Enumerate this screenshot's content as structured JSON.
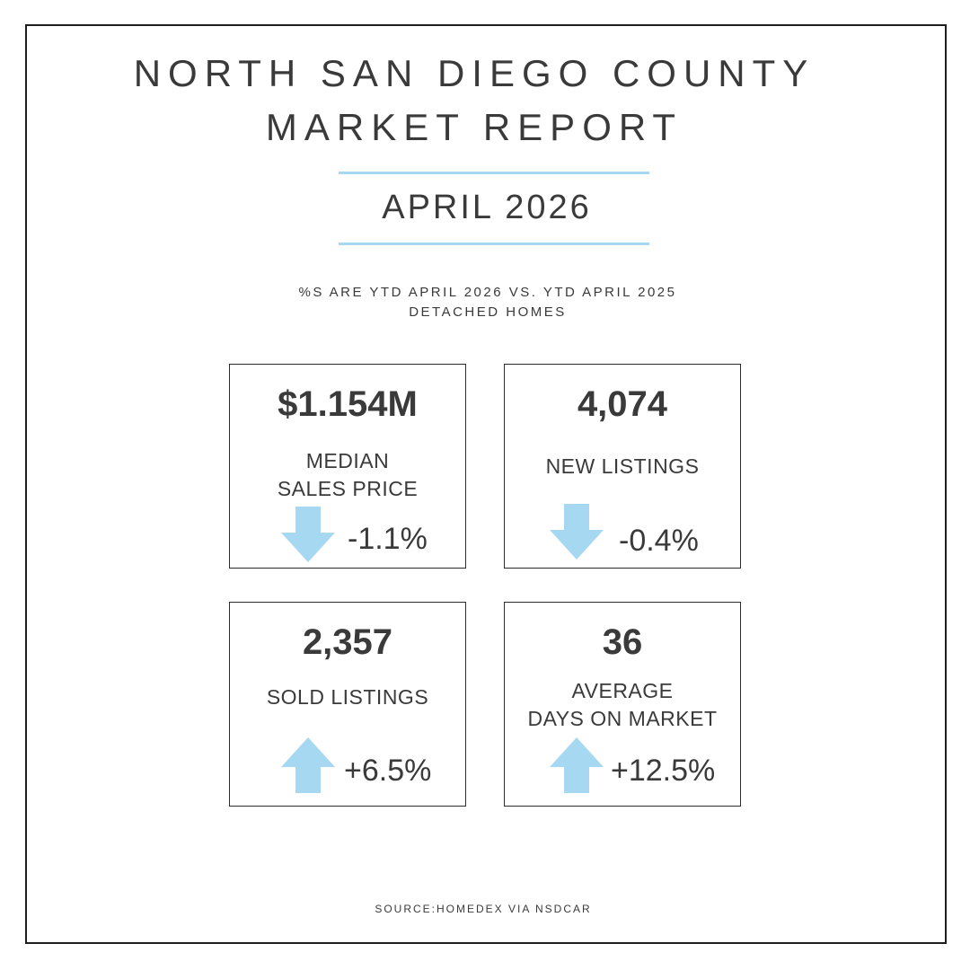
{
  "header": {
    "title_line_1": "NORTH SAN DIEGO COUNTY",
    "title_line_2": "MARKET REPORT",
    "period": "APRIL 2026",
    "subtitle_line_1": "%S ARE YTD APRIL 2026 VS. YTD APRIL 2025",
    "subtitle_line_2": "DETACHED HOMES"
  },
  "accent_color": "#a6d8f2",
  "metrics": [
    {
      "value": "$1.154M",
      "label_lines": [
        "MEDIAN",
        "SALES PRICE"
      ],
      "change": "-1.1%",
      "direction": "down",
      "icon": "arrow-down-icon"
    },
    {
      "value": "4,074",
      "label_lines": [
        "NEW LISTINGS"
      ],
      "change": "-0.4%",
      "direction": "down",
      "icon": "arrow-down-icon"
    },
    {
      "value": "2,357",
      "label_lines": [
        "SOLD LISTINGS"
      ],
      "change": "+6.5%",
      "direction": "up",
      "icon": "arrow-up-icon"
    },
    {
      "value": "36",
      "label_lines": [
        "AVERAGE",
        "DAYS ON MARKET"
      ],
      "change": "+12.5%",
      "direction": "up",
      "icon": "arrow-up-icon"
    }
  ],
  "footer": {
    "source": "SOURCE:HOMEDEX VIA NSDCAR"
  }
}
